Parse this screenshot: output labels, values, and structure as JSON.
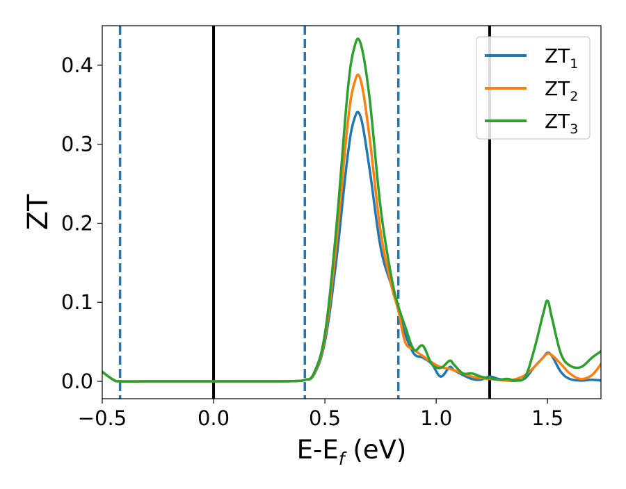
{
  "chart_data": {
    "type": "line",
    "xlabel": {
      "main": "E-E",
      "sub": "f",
      "unit": " (eV)"
    },
    "ylabel": "ZT",
    "xlim": [
      -0.5,
      1.74
    ],
    "ylim": [
      -0.022,
      0.45
    ],
    "xticks": [
      -0.5,
      0.0,
      0.5,
      1.0,
      1.5
    ],
    "xtick_labels": [
      "−0.5",
      "0.0",
      "0.5",
      "1.0",
      "1.5"
    ],
    "yticks": [
      0.0,
      0.1,
      0.2,
      0.3,
      0.4
    ],
    "ytick_labels": [
      "0.0",
      "0.1",
      "0.2",
      "0.3",
      "0.4"
    ],
    "grid": false,
    "legend_position": "top-right",
    "vertical_lines": [
      {
        "x": -0.42,
        "style": "dashed",
        "color": "#1f77b4"
      },
      {
        "x": 0.0,
        "style": "solid",
        "color": "#000000"
      },
      {
        "x": 0.41,
        "style": "dashed",
        "color": "#1f77b4"
      },
      {
        "x": 0.83,
        "style": "dashed",
        "color": "#1f77b4"
      },
      {
        "x": 1.24,
        "style": "solid",
        "color": "#000000"
      }
    ],
    "x": [
      -0.5,
      -0.45,
      -0.42,
      -0.3,
      0.0,
      0.3,
      0.38,
      0.41,
      0.45,
      0.5,
      0.55,
      0.6,
      0.63,
      0.66,
      0.7,
      0.75,
      0.8,
      0.83,
      0.86,
      0.9,
      0.94,
      0.98,
      1.02,
      1.06,
      1.08,
      1.12,
      1.16,
      1.2,
      1.24,
      1.28,
      1.32,
      1.36,
      1.4,
      1.44,
      1.48,
      1.5,
      1.52,
      1.56,
      1.6,
      1.65,
      1.7,
      1.74
    ],
    "series": [
      {
        "name": "ZT",
        "name_sub": "1",
        "color": "#1f77b4",
        "values": [
          0.012,
          0.002,
          0.0,
          0.0,
          0.0,
          0.0,
          0.0005,
          0.002,
          0.008,
          0.05,
          0.15,
          0.28,
          0.33,
          0.335,
          0.27,
          0.17,
          0.12,
          0.09,
          0.06,
          0.035,
          0.03,
          0.022,
          0.006,
          0.018,
          0.014,
          0.008,
          0.003,
          0.002,
          0.006,
          0.003,
          0.001,
          0.001,
          0.004,
          0.018,
          0.03,
          0.036,
          0.032,
          0.012,
          0.003,
          0.001,
          0.002,
          0.001
        ]
      },
      {
        "name": "ZT",
        "name_sub": "2",
        "color": "#ff7f0e",
        "values": [
          0.012,
          0.002,
          0.0,
          0.0,
          0.0,
          0.0,
          0.0005,
          0.002,
          0.009,
          0.055,
          0.17,
          0.32,
          0.375,
          0.382,
          0.31,
          0.19,
          0.12,
          0.09,
          0.05,
          0.04,
          0.032,
          0.024,
          0.018,
          0.016,
          0.014,
          0.01,
          0.006,
          0.004,
          0.003,
          0.002,
          0.001,
          0.003,
          0.008,
          0.018,
          0.03,
          0.035,
          0.033,
          0.022,
          0.01,
          0.003,
          0.008,
          0.022
        ]
      },
      {
        "name": "ZT",
        "name_sub": "3",
        "color": "#2ca02c",
        "values": [
          0.012,
          0.002,
          0.0,
          0.0,
          0.0,
          0.0,
          0.0005,
          0.002,
          0.01,
          0.06,
          0.19,
          0.36,
          0.42,
          0.428,
          0.36,
          0.22,
          0.13,
          0.095,
          0.07,
          0.04,
          0.045,
          0.022,
          0.017,
          0.026,
          0.021,
          0.01,
          0.01,
          0.006,
          0.004,
          0.002,
          0.003,
          0.001,
          0.006,
          0.04,
          0.085,
          0.102,
          0.08,
          0.035,
          0.02,
          0.018,
          0.03,
          0.038
        ]
      }
    ]
  }
}
